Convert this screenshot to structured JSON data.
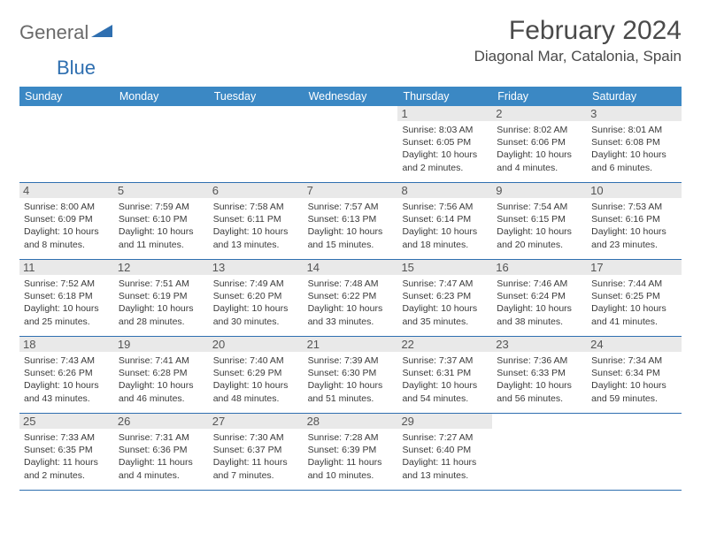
{
  "brand": {
    "part1": "General",
    "part2": "Blue"
  },
  "title": "February 2024",
  "location": "Diagonal Mar, Catalonia, Spain",
  "colors": {
    "header_bg": "#3b88c4",
    "header_text": "#ffffff",
    "rule": "#2f6fb0",
    "daynum_bg": "#e9e9e9",
    "text": "#3a3a3a",
    "logo_gray": "#6a6a6a",
    "logo_blue": "#2f6fb0"
  },
  "day_names": [
    "Sunday",
    "Monday",
    "Tuesday",
    "Wednesday",
    "Thursday",
    "Friday",
    "Saturday"
  ],
  "weeks": [
    [
      null,
      null,
      null,
      null,
      {
        "n": "1",
        "sr": "Sunrise: 8:03 AM",
        "ss": "Sunset: 6:05 PM",
        "dl": "Daylight: 10 hours and 2 minutes."
      },
      {
        "n": "2",
        "sr": "Sunrise: 8:02 AM",
        "ss": "Sunset: 6:06 PM",
        "dl": "Daylight: 10 hours and 4 minutes."
      },
      {
        "n": "3",
        "sr": "Sunrise: 8:01 AM",
        "ss": "Sunset: 6:08 PM",
        "dl": "Daylight: 10 hours and 6 minutes."
      }
    ],
    [
      {
        "n": "4",
        "sr": "Sunrise: 8:00 AM",
        "ss": "Sunset: 6:09 PM",
        "dl": "Daylight: 10 hours and 8 minutes."
      },
      {
        "n": "5",
        "sr": "Sunrise: 7:59 AM",
        "ss": "Sunset: 6:10 PM",
        "dl": "Daylight: 10 hours and 11 minutes."
      },
      {
        "n": "6",
        "sr": "Sunrise: 7:58 AM",
        "ss": "Sunset: 6:11 PM",
        "dl": "Daylight: 10 hours and 13 minutes."
      },
      {
        "n": "7",
        "sr": "Sunrise: 7:57 AM",
        "ss": "Sunset: 6:13 PM",
        "dl": "Daylight: 10 hours and 15 minutes."
      },
      {
        "n": "8",
        "sr": "Sunrise: 7:56 AM",
        "ss": "Sunset: 6:14 PM",
        "dl": "Daylight: 10 hours and 18 minutes."
      },
      {
        "n": "9",
        "sr": "Sunrise: 7:54 AM",
        "ss": "Sunset: 6:15 PM",
        "dl": "Daylight: 10 hours and 20 minutes."
      },
      {
        "n": "10",
        "sr": "Sunrise: 7:53 AM",
        "ss": "Sunset: 6:16 PM",
        "dl": "Daylight: 10 hours and 23 minutes."
      }
    ],
    [
      {
        "n": "11",
        "sr": "Sunrise: 7:52 AM",
        "ss": "Sunset: 6:18 PM",
        "dl": "Daylight: 10 hours and 25 minutes."
      },
      {
        "n": "12",
        "sr": "Sunrise: 7:51 AM",
        "ss": "Sunset: 6:19 PM",
        "dl": "Daylight: 10 hours and 28 minutes."
      },
      {
        "n": "13",
        "sr": "Sunrise: 7:49 AM",
        "ss": "Sunset: 6:20 PM",
        "dl": "Daylight: 10 hours and 30 minutes."
      },
      {
        "n": "14",
        "sr": "Sunrise: 7:48 AM",
        "ss": "Sunset: 6:22 PM",
        "dl": "Daylight: 10 hours and 33 minutes."
      },
      {
        "n": "15",
        "sr": "Sunrise: 7:47 AM",
        "ss": "Sunset: 6:23 PM",
        "dl": "Daylight: 10 hours and 35 minutes."
      },
      {
        "n": "16",
        "sr": "Sunrise: 7:46 AM",
        "ss": "Sunset: 6:24 PM",
        "dl": "Daylight: 10 hours and 38 minutes."
      },
      {
        "n": "17",
        "sr": "Sunrise: 7:44 AM",
        "ss": "Sunset: 6:25 PM",
        "dl": "Daylight: 10 hours and 41 minutes."
      }
    ],
    [
      {
        "n": "18",
        "sr": "Sunrise: 7:43 AM",
        "ss": "Sunset: 6:26 PM",
        "dl": "Daylight: 10 hours and 43 minutes."
      },
      {
        "n": "19",
        "sr": "Sunrise: 7:41 AM",
        "ss": "Sunset: 6:28 PM",
        "dl": "Daylight: 10 hours and 46 minutes."
      },
      {
        "n": "20",
        "sr": "Sunrise: 7:40 AM",
        "ss": "Sunset: 6:29 PM",
        "dl": "Daylight: 10 hours and 48 minutes."
      },
      {
        "n": "21",
        "sr": "Sunrise: 7:39 AM",
        "ss": "Sunset: 6:30 PM",
        "dl": "Daylight: 10 hours and 51 minutes."
      },
      {
        "n": "22",
        "sr": "Sunrise: 7:37 AM",
        "ss": "Sunset: 6:31 PM",
        "dl": "Daylight: 10 hours and 54 minutes."
      },
      {
        "n": "23",
        "sr": "Sunrise: 7:36 AM",
        "ss": "Sunset: 6:33 PM",
        "dl": "Daylight: 10 hours and 56 minutes."
      },
      {
        "n": "24",
        "sr": "Sunrise: 7:34 AM",
        "ss": "Sunset: 6:34 PM",
        "dl": "Daylight: 10 hours and 59 minutes."
      }
    ],
    [
      {
        "n": "25",
        "sr": "Sunrise: 7:33 AM",
        "ss": "Sunset: 6:35 PM",
        "dl": "Daylight: 11 hours and 2 minutes."
      },
      {
        "n": "26",
        "sr": "Sunrise: 7:31 AM",
        "ss": "Sunset: 6:36 PM",
        "dl": "Daylight: 11 hours and 4 minutes."
      },
      {
        "n": "27",
        "sr": "Sunrise: 7:30 AM",
        "ss": "Sunset: 6:37 PM",
        "dl": "Daylight: 11 hours and 7 minutes."
      },
      {
        "n": "28",
        "sr": "Sunrise: 7:28 AM",
        "ss": "Sunset: 6:39 PM",
        "dl": "Daylight: 11 hours and 10 minutes."
      },
      {
        "n": "29",
        "sr": "Sunrise: 7:27 AM",
        "ss": "Sunset: 6:40 PM",
        "dl": "Daylight: 11 hours and 13 minutes."
      },
      null,
      null
    ]
  ]
}
